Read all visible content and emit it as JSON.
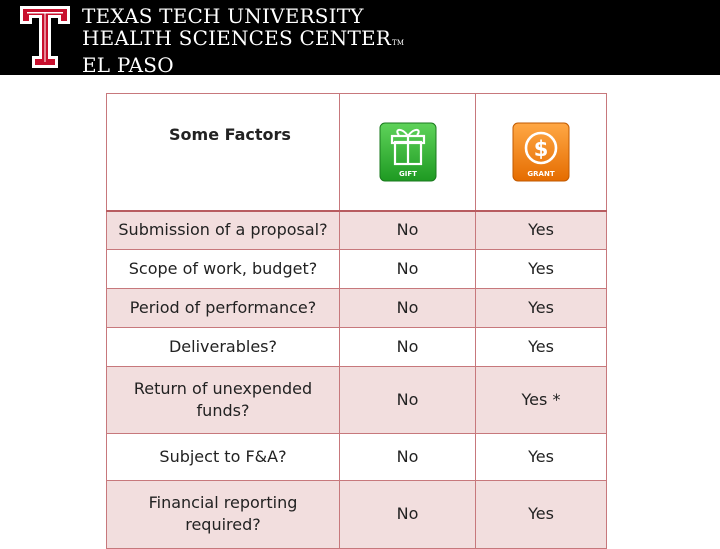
{
  "header": {
    "line1": "TEXAS TECH UNIVERSITY",
    "line2": "HEALTH SCIENCES CENTER",
    "tm": "TM",
    "line3": "EL PASO",
    "brand_color": "#c8102e"
  },
  "table": {
    "header_label": "Some Factors",
    "gift_label": "GIFT",
    "grant_label": "GRANT",
    "gift_icon": "gift-icon",
    "grant_icon": "dollar-coin-icon",
    "rows": [
      {
        "factor": "Submission of a proposal?",
        "gift": "No",
        "grant": "Yes"
      },
      {
        "factor": "Scope of work, budget?",
        "gift": "No",
        "grant": "Yes"
      },
      {
        "factor": "Period of performance?",
        "gift": "No",
        "grant": "Yes"
      },
      {
        "factor": "Deliverables?",
        "gift": "No",
        "grant": "Yes"
      },
      {
        "factor": "Return of unexpended funds?",
        "gift": "No",
        "grant": "Yes *"
      },
      {
        "factor": "Subject to F&A?",
        "gift": "No",
        "grant": "Yes"
      },
      {
        "factor": "Financial reporting required?",
        "gift": "No",
        "grant": "Yes"
      }
    ]
  }
}
